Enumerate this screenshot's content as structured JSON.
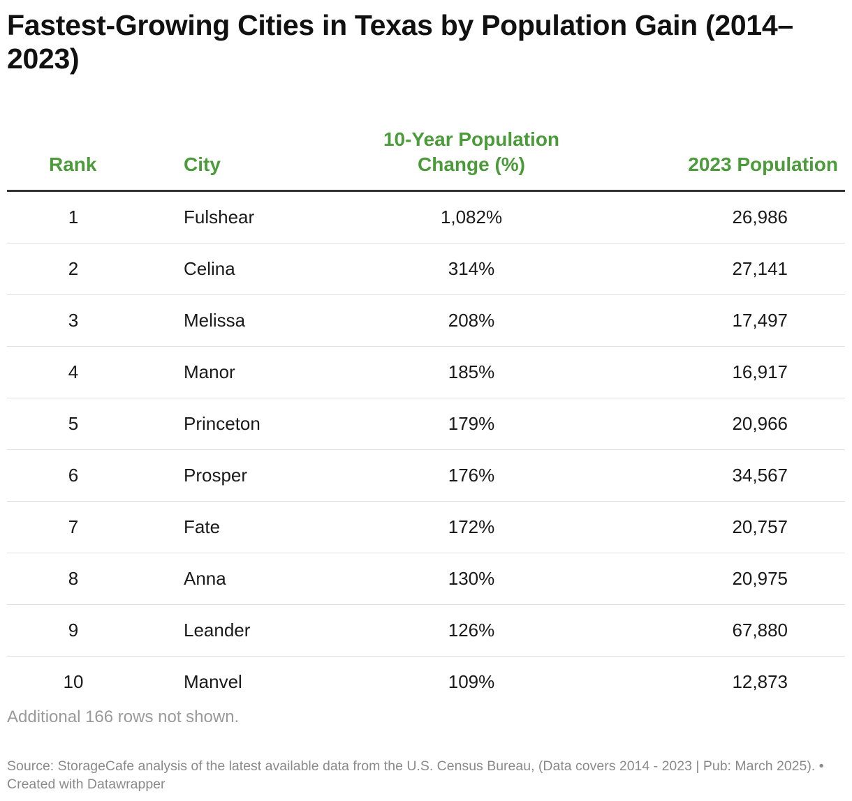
{
  "chart_data": {
    "type": "table",
    "title": "Fastest-Growing Cities in Texas by Population Gain (2014–2023)",
    "columns": [
      "Rank",
      "City",
      "10-Year Population Change (%)",
      "2023 Population"
    ],
    "rows": [
      {
        "rank": "1",
        "city": "Fulshear",
        "change": "1,082%",
        "population": "26,986"
      },
      {
        "rank": "2",
        "city": "Celina",
        "change": "314%",
        "population": "27,141"
      },
      {
        "rank": "3",
        "city": "Melissa",
        "change": "208%",
        "population": "17,497"
      },
      {
        "rank": "4",
        "city": "Manor",
        "change": "185%",
        "population": "16,917"
      },
      {
        "rank": "5",
        "city": "Princeton",
        "change": "179%",
        "population": "20,966"
      },
      {
        "rank": "6",
        "city": "Prosper",
        "change": "176%",
        "population": "34,567"
      },
      {
        "rank": "7",
        "city": "Fate",
        "change": "172%",
        "population": "20,757"
      },
      {
        "rank": "8",
        "city": "Anna",
        "change": "130%",
        "population": "20,975"
      },
      {
        "rank": "9",
        "city": "Leander",
        "change": "126%",
        "population": "67,880"
      },
      {
        "rank": "10",
        "city": "Manvel",
        "change": "109%",
        "population": "12,873"
      }
    ],
    "footnote": "Additional 166 rows not shown.",
    "source": "Source: StorageCafe analysis of the latest available data from the U.S. Census Bureau, (Data covers 2014 - 2023 | Pub: March 2025).  • Created with Datawrapper"
  },
  "colors": {
    "header_text": "#4c9b3b",
    "header_rule": "#333333",
    "row_divider": "#e0e0e0"
  }
}
